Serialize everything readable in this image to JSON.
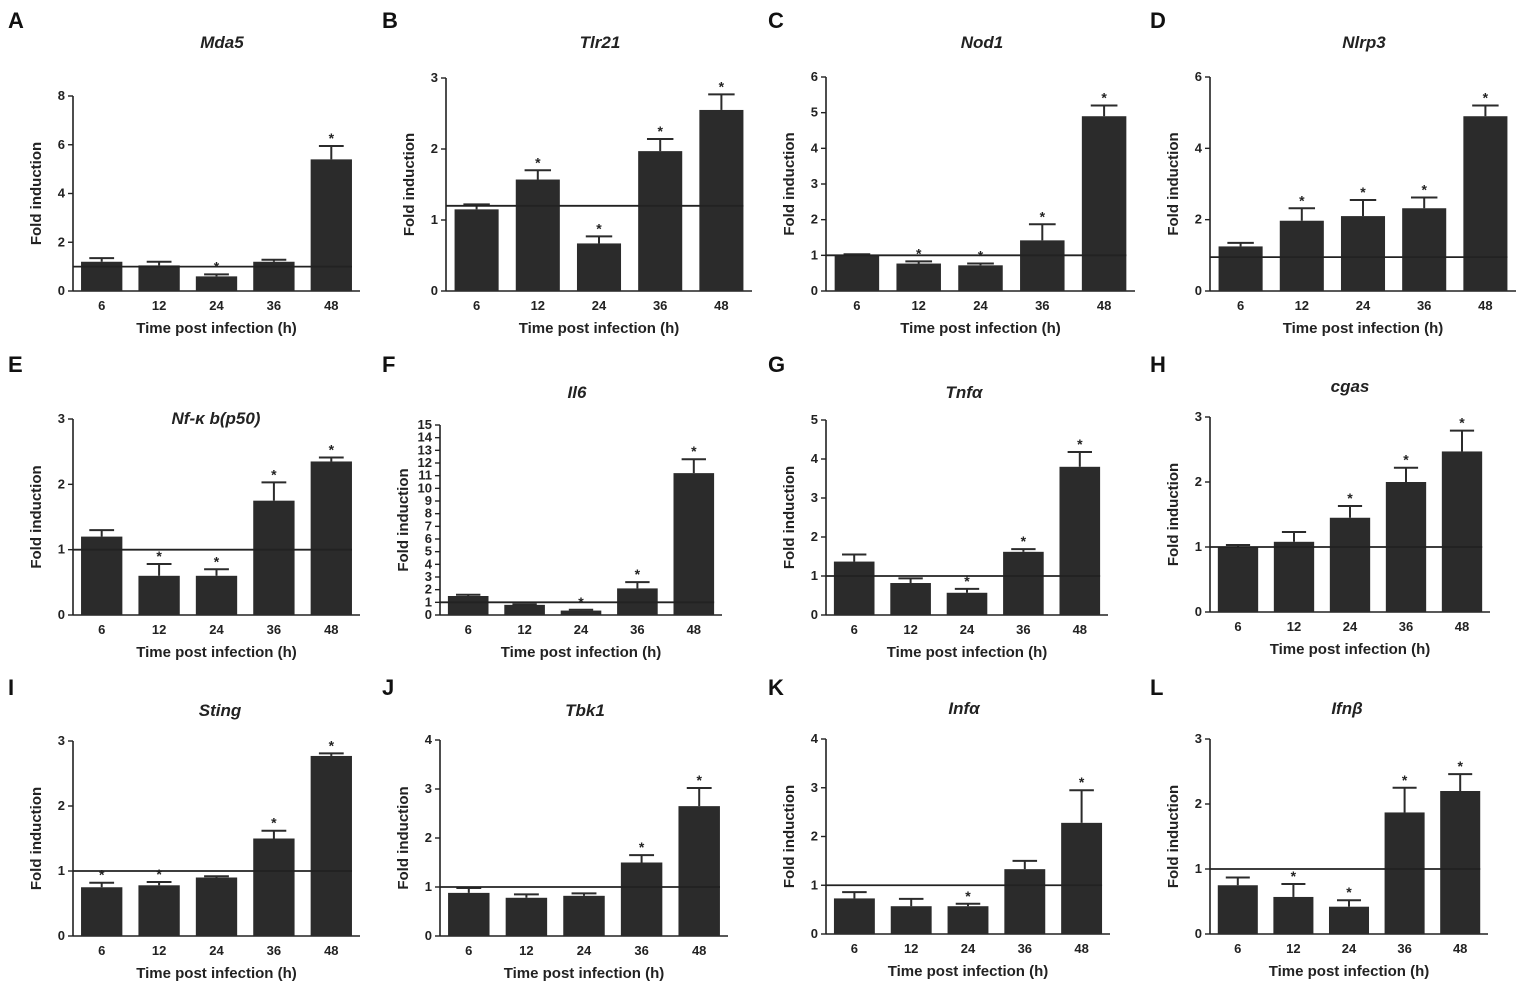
{
  "chart_data": [
    {
      "panel": "A",
      "type": "bar",
      "title": "Mda5",
      "xlabel": "Time post infection (h)",
      "ylabel": "Fold induction",
      "categories": [
        "6",
        "12",
        "24",
        "36",
        "48"
      ],
      "values": [
        1.2,
        1.05,
        0.6,
        1.2,
        5.4
      ],
      "errors": [
        0.15,
        0.15,
        0.08,
        0.08,
        0.55
      ],
      "significant": [
        false,
        false,
        true,
        false,
        true
      ],
      "ylim": [
        0,
        8
      ],
      "yticks": [
        "0",
        "2",
        "4",
        "6",
        "8"
      ],
      "baseline": 1
    },
    {
      "panel": "B",
      "type": "bar",
      "title": "Tlr21",
      "xlabel": "Time post infection (h)",
      "ylabel": "Fold induction",
      "categories": [
        "6",
        "12",
        "24",
        "36",
        "48"
      ],
      "values": [
        1.15,
        1.57,
        0.67,
        1.97,
        2.55
      ],
      "errors": [
        0.07,
        0.13,
        0.1,
        0.17,
        0.22
      ],
      "significant": [
        false,
        true,
        true,
        true,
        true
      ],
      "ylim": [
        0,
        3
      ],
      "yticks": [
        "0",
        "1",
        "2",
        "3"
      ],
      "baseline": 1.2
    },
    {
      "panel": "C",
      "type": "bar",
      "title": "Nod1",
      "xlabel": "Time post infection (h)",
      "ylabel": "Fold induction",
      "categories": [
        "6",
        "12",
        "24",
        "36",
        "48"
      ],
      "values": [
        1.0,
        0.77,
        0.72,
        1.42,
        4.9
      ],
      "errors": [
        0.03,
        0.06,
        0.05,
        0.45,
        0.3
      ],
      "significant": [
        false,
        true,
        true,
        true,
        true
      ],
      "ylim": [
        0,
        6
      ],
      "yticks": [
        "0",
        "1",
        "2",
        "3",
        "4",
        "5",
        "6"
      ],
      "baseline": 1
    },
    {
      "panel": "D",
      "type": "bar",
      "title": "Nlrp3",
      "xlabel": "Time post infection (h)",
      "ylabel": "Fold induction",
      "categories": [
        "6",
        "12",
        "24",
        "36",
        "48"
      ],
      "values": [
        1.25,
        1.97,
        2.1,
        2.32,
        4.9
      ],
      "errors": [
        0.1,
        0.35,
        0.45,
        0.3,
        0.3
      ],
      "significant": [
        false,
        true,
        true,
        true,
        true
      ],
      "ylim": [
        0,
        6
      ],
      "yticks": [
        "0",
        "2",
        "4",
        "6"
      ],
      "baseline": 0.95
    },
    {
      "panel": "E",
      "type": "bar",
      "title": "Nf-κ b(p50)",
      "xlabel": "Time post infection (h)",
      "ylabel": "Fold induction",
      "categories": [
        "6",
        "12",
        "24",
        "36",
        "48"
      ],
      "values": [
        1.2,
        0.6,
        0.6,
        1.75,
        2.35
      ],
      "errors": [
        0.1,
        0.18,
        0.1,
        0.28,
        0.06
      ],
      "significant": [
        false,
        true,
        true,
        true,
        true
      ],
      "ylim": [
        0,
        3
      ],
      "yticks": [
        "0",
        "1",
        "2",
        "3"
      ],
      "baseline": 1
    },
    {
      "panel": "F",
      "type": "bar",
      "title": "Il6",
      "xlabel": "Time post infection (h)",
      "ylabel": "Fold induction",
      "categories": [
        "6",
        "12",
        "24",
        "36",
        "48"
      ],
      "values": [
        1.5,
        0.8,
        0.35,
        2.1,
        11.2
      ],
      "errors": [
        0.1,
        0.05,
        0.06,
        0.5,
        1.1
      ],
      "significant": [
        false,
        false,
        true,
        true,
        true
      ],
      "ylim": [
        0,
        15
      ],
      "yticks": [
        "0",
        "1",
        "2",
        "3",
        "4",
        "5",
        "6",
        "7",
        "8",
        "9",
        "10",
        "11",
        "12",
        "13",
        "14",
        "15"
      ],
      "baseline": 1
    },
    {
      "panel": "G",
      "type": "bar",
      "title": "Tnfα",
      "xlabel": "Time post infection (h)",
      "ylabel": "Fold induction",
      "categories": [
        "6",
        "12",
        "24",
        "36",
        "48"
      ],
      "values": [
        1.37,
        0.82,
        0.57,
        1.62,
        3.8
      ],
      "errors": [
        0.18,
        0.12,
        0.1,
        0.07,
        0.38
      ],
      "significant": [
        false,
        false,
        true,
        true,
        true
      ],
      "ylim": [
        0,
        5
      ],
      "yticks": [
        "0",
        "1",
        "2",
        "3",
        "4",
        "5"
      ],
      "baseline": 1
    },
    {
      "panel": "H",
      "type": "bar",
      "title": "cgas",
      "xlabel": "Time post infection (h)",
      "ylabel": "Fold induction",
      "categories": [
        "6",
        "12",
        "24",
        "36",
        "48"
      ],
      "values": [
        1.0,
        1.08,
        1.45,
        2.0,
        2.47
      ],
      "errors": [
        0.03,
        0.15,
        0.18,
        0.22,
        0.32
      ],
      "significant": [
        false,
        false,
        true,
        true,
        true
      ],
      "ylim": [
        0,
        3
      ],
      "yticks": [
        "0",
        "1",
        "2",
        "3"
      ],
      "baseline": 1
    },
    {
      "panel": "I",
      "type": "bar",
      "title": "Sting",
      "xlabel": "Time post infection (h)",
      "ylabel": "Fold induction",
      "categories": [
        "6",
        "12",
        "24",
        "36",
        "48"
      ],
      "values": [
        0.75,
        0.78,
        0.9,
        1.5,
        2.77
      ],
      "errors": [
        0.07,
        0.05,
        0.02,
        0.12,
        0.04
      ],
      "significant": [
        true,
        true,
        false,
        true,
        true
      ],
      "ylim": [
        0,
        3
      ],
      "yticks": [
        "0",
        "1",
        "2",
        "3"
      ],
      "baseline": 1
    },
    {
      "panel": "J",
      "type": "bar",
      "title": "Tbk1",
      "xlabel": "Time post infection (h)",
      "ylabel": "Fold induction",
      "categories": [
        "6",
        "12",
        "24",
        "36",
        "48"
      ],
      "values": [
        0.88,
        0.78,
        0.82,
        1.5,
        2.65
      ],
      "errors": [
        0.1,
        0.07,
        0.05,
        0.15,
        0.37
      ],
      "significant": [
        false,
        false,
        false,
        true,
        true
      ],
      "ylim": [
        0,
        4
      ],
      "yticks": [
        "0",
        "1",
        "2",
        "3",
        "4"
      ],
      "baseline": 1
    },
    {
      "panel": "K",
      "type": "bar",
      "title": "Infα",
      "xlabel": "Time post infection (h)",
      "ylabel": "Fold induction",
      "categories": [
        "6",
        "12",
        "24",
        "36",
        "48"
      ],
      "values": [
        0.73,
        0.57,
        0.57,
        1.33,
        2.28
      ],
      "errors": [
        0.13,
        0.15,
        0.05,
        0.17,
        0.67
      ],
      "significant": [
        false,
        false,
        true,
        false,
        true
      ],
      "ylim": [
        0,
        4
      ],
      "yticks": [
        "0",
        "1",
        "2",
        "3",
        "4"
      ],
      "baseline": 1
    },
    {
      "panel": "L",
      "type": "bar",
      "title": "Ifnβ",
      "xlabel": "Time post infection (h)",
      "ylabel": "Fold induction",
      "categories": [
        "6",
        "12",
        "24",
        "36",
        "48"
      ],
      "values": [
        0.75,
        0.57,
        0.42,
        1.87,
        2.2
      ],
      "errors": [
        0.12,
        0.2,
        0.1,
        0.38,
        0.26
      ],
      "significant": [
        false,
        true,
        true,
        true,
        true
      ],
      "ylim": [
        0,
        3
      ],
      "yticks": [
        "0",
        "1",
        "2",
        "3"
      ],
      "baseline": 1
    }
  ],
  "significance_marker": "*",
  "colors": {
    "bar": "#2b2b2b",
    "axis": "#222222",
    "text": "#222222"
  }
}
